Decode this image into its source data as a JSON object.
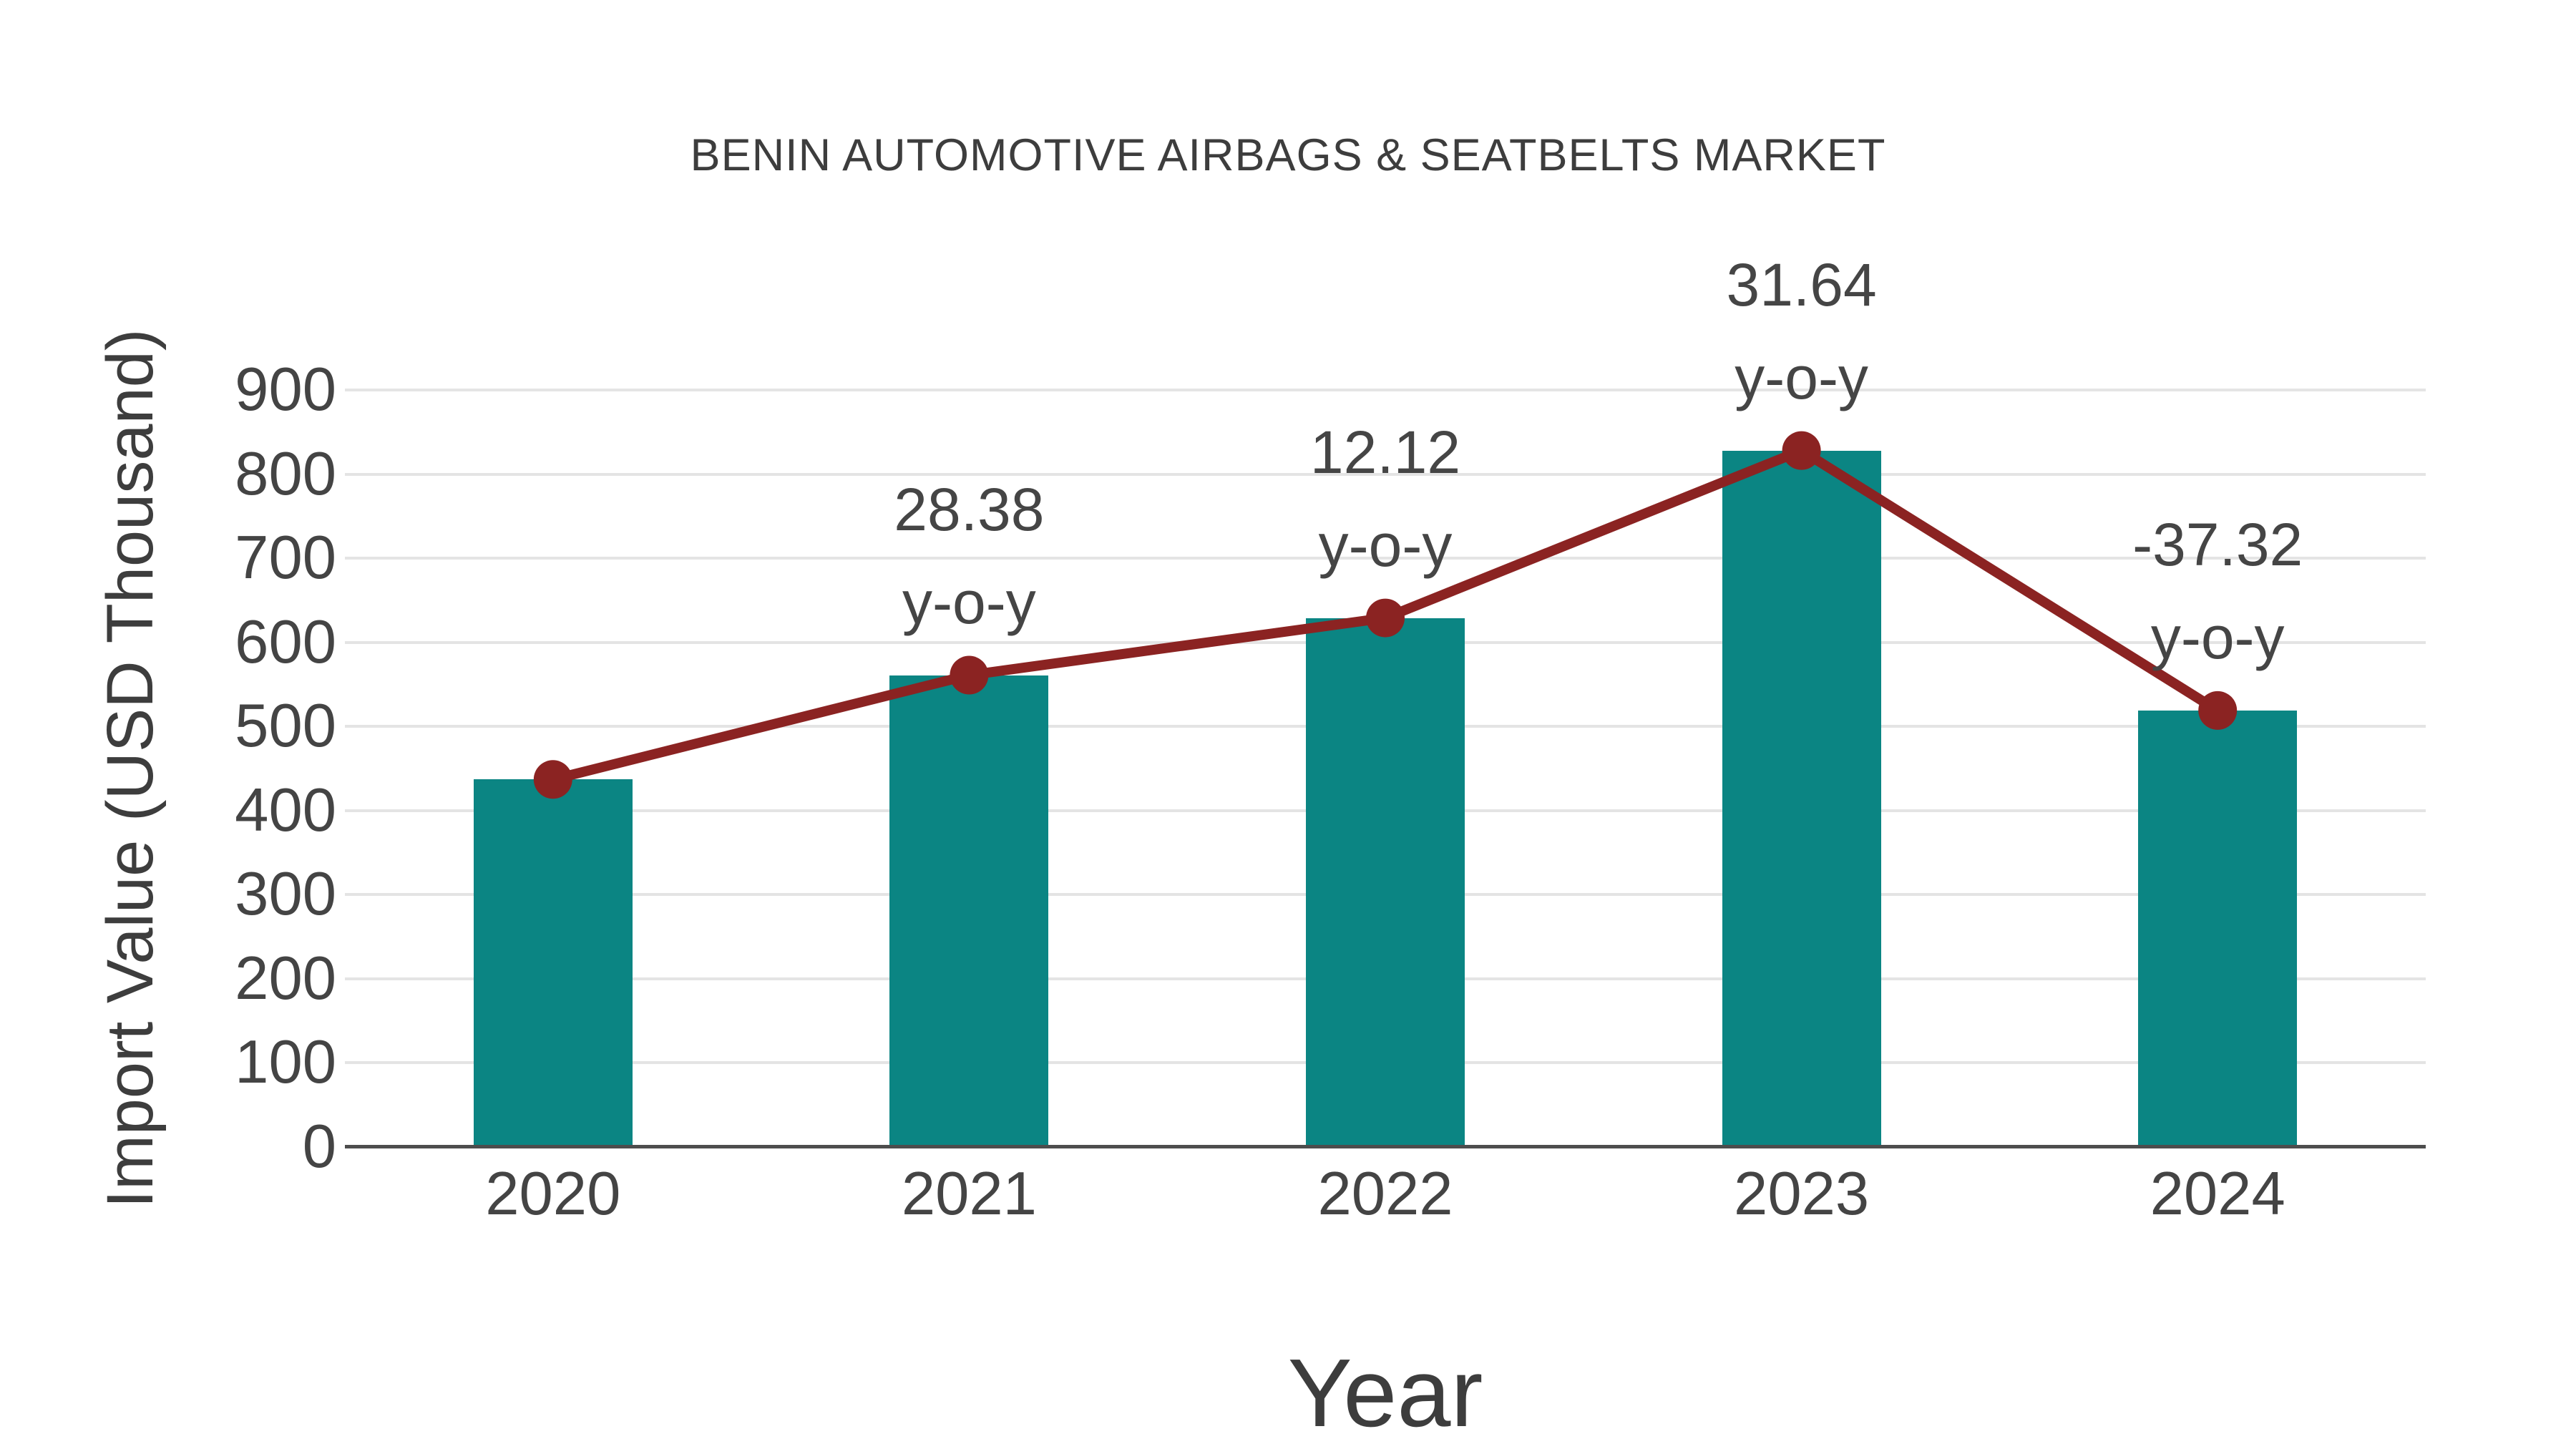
{
  "title": "BENIN AUTOMOTIVE AIRBAGS & SEATBELTS MARKET",
  "x_axis_title": "Year",
  "y_axis_title": "Import Value (USD Thousand)",
  "chart_data": {
    "type": "bar",
    "categories": [
      "2020",
      "2021",
      "2022",
      "2023",
      "2024"
    ],
    "values": [
      437,
      561,
      629,
      828,
      519
    ],
    "series": [
      {
        "name": "Import Value (USD Thousand)",
        "type": "bar",
        "values": [
          437,
          561,
          629,
          828,
          519
        ]
      },
      {
        "name": "y-o-y change (%)",
        "type": "line",
        "values": [
          null,
          28.38,
          12.12,
          31.64,
          -37.32
        ]
      }
    ],
    "line_overlay_note": "dark red line with round markers passes through the top center of every bar",
    "point_labels": [
      {
        "category": "2020",
        "value_text": "",
        "suffix": ""
      },
      {
        "category": "2021",
        "value_text": "28.38",
        "suffix": "y-o-y"
      },
      {
        "category": "2022",
        "value_text": "12.12",
        "suffix": "y-o-y"
      },
      {
        "category": "2023",
        "value_text": "31.64",
        "suffix": "y-o-y"
      },
      {
        "category": "2024",
        "value_text": "-37.32",
        "suffix": "y-o-y"
      }
    ],
    "xlabel": "Year",
    "ylabel": "Import Value (USD Thousand)",
    "ylim": [
      0,
      900
    ],
    "ytick_step": 100,
    "yticks": [
      0,
      100,
      200,
      300,
      400,
      500,
      600,
      700,
      800,
      900
    ],
    "grid": "horizontal",
    "legend": "none",
    "colors": {
      "bar": "#0b8583",
      "line": "#8b2322",
      "marker": "#8b2322",
      "text": "#444444",
      "title_text": "#3d3d3d",
      "grid": "#e4e4e4",
      "axis": "#4d4d4d",
      "background": "#ffffff"
    }
  }
}
